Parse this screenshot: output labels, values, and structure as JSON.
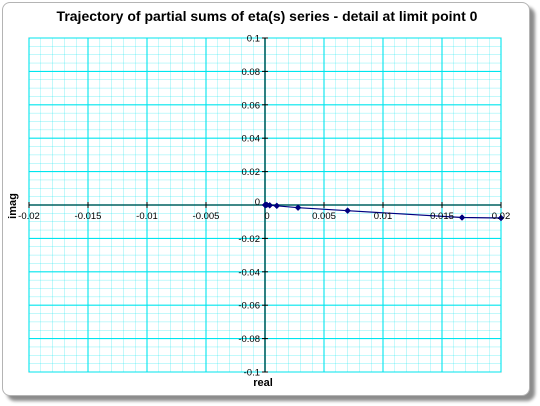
{
  "chart_data": {
    "type": "scatter",
    "title": "Trajectory of partial sums of eta(s) series - detail at limit point 0",
    "xlabel": "real",
    "ylabel": "imag",
    "xlim": [
      -0.02,
      0.02
    ],
    "ylim": [
      -0.1,
      0.1
    ],
    "xticks": [
      -0.02,
      -0.015,
      -0.01,
      -0.005,
      0,
      0.005,
      0.01,
      0.015,
      0.02
    ],
    "xtick_labels": [
      "-0.02",
      "-0.015",
      "-0.01",
      "-0.005",
      "0",
      "0.005",
      "0.01",
      "0.015",
      "0.02"
    ],
    "yticks": [
      0.1,
      0.08,
      0.06,
      0.04,
      0.02,
      0,
      -0.02,
      -0.04,
      -0.06,
      -0.08,
      -0.1
    ],
    "ytick_labels": [
      "0.1",
      "0.08",
      "0.06",
      "0.04",
      "0.02",
      "0",
      "-0.02",
      "-0.04",
      "-0.06",
      "-0.08",
      "-0.1"
    ],
    "grid": true,
    "legend": "none",
    "series": [
      {
        "x": [
          0.02,
          0.0167,
          0.007,
          0.0028,
          0.001,
          0.0004,
          0.00015,
          5e-05,
          1e-05
        ],
        "y": [
          -0.0078,
          -0.0075,
          -0.0034,
          -0.0016,
          -0.0005,
          -0.0002,
          0.0001,
          -5e-05,
          0.0
        ],
        "color": "#000080"
      }
    ],
    "colors": {
      "grid": "#00e5ee",
      "axis": "#006060",
      "series": "#000080"
    }
  }
}
